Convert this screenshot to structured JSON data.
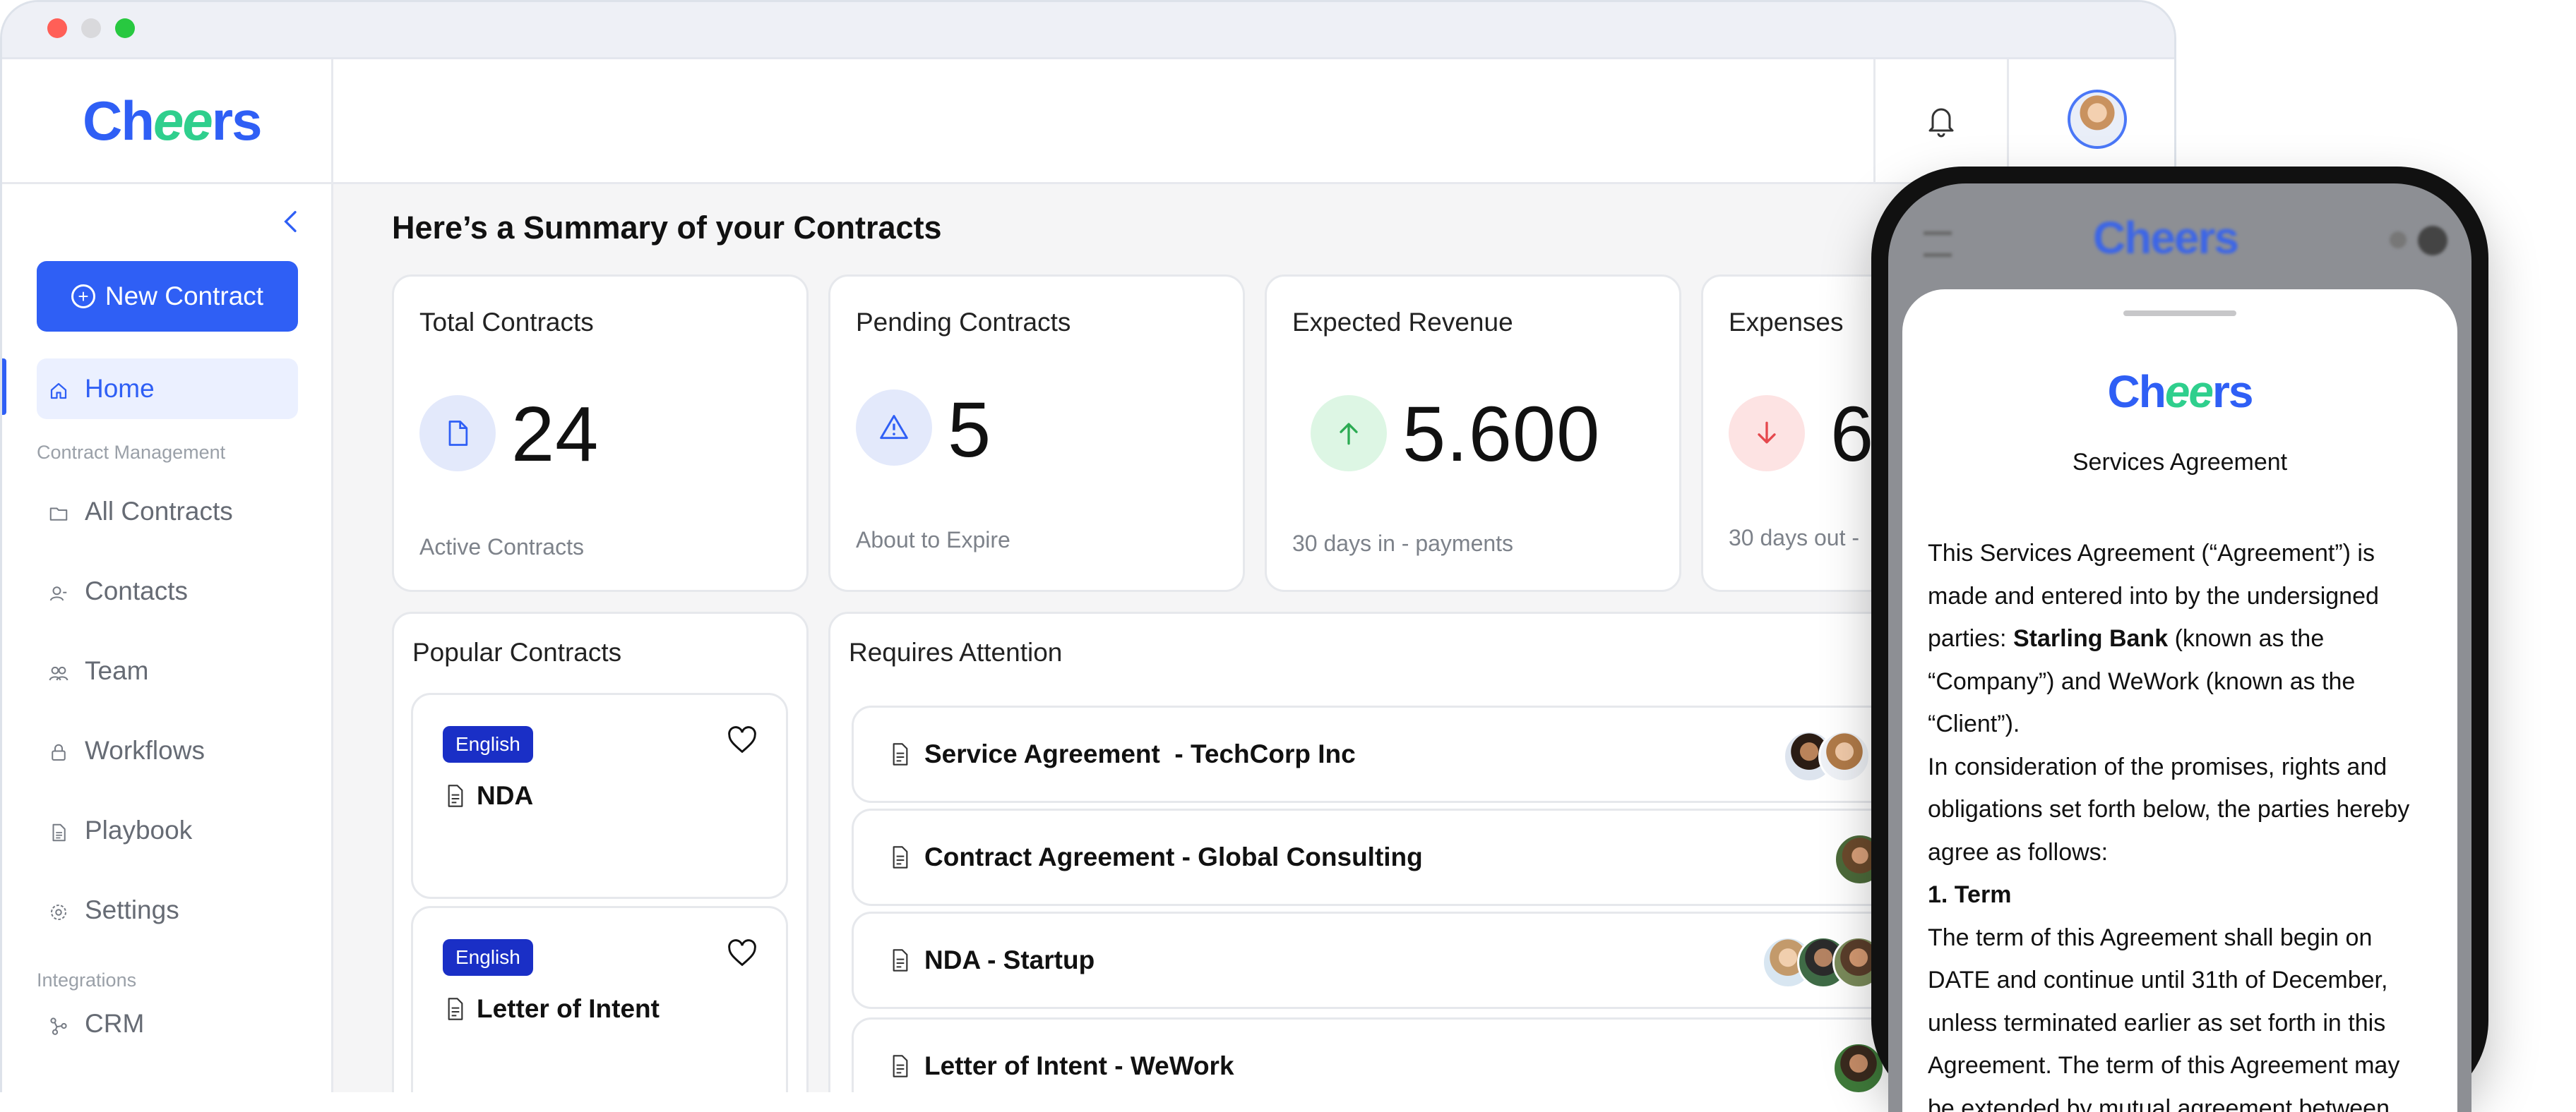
{
  "brand": {
    "logo_prefix": "Ch",
    "logo_mid": "ee",
    "logo_suffix": "rs",
    "primary": "#2f5ff5",
    "accent": "#2fcf8d"
  },
  "sidebar": {
    "new_contract": "New Contract",
    "home": "Home",
    "section_contract_management": "Contract Management",
    "items": [
      {
        "label": "All Contracts",
        "icon": "folder-icon"
      },
      {
        "label": "Contacts",
        "icon": "contacts-icon"
      },
      {
        "label": "Team",
        "icon": "team-icon"
      },
      {
        "label": "Workflows",
        "icon": "lock-icon"
      },
      {
        "label": "Playbook",
        "icon": "playbook-icon"
      },
      {
        "label": "Settings",
        "icon": "gear-icon"
      }
    ],
    "section_integrations": "Integrations",
    "crm": "CRM"
  },
  "main": {
    "title": "Here’s a Summary of your Contracts",
    "stats": [
      {
        "label": "Total Contracts",
        "value": "24",
        "sub": "Active Contracts",
        "icon": "document-icon"
      },
      {
        "label": "Pending Contracts",
        "value": "5",
        "sub": "About to Expire",
        "icon": "warning-icon"
      },
      {
        "label": "Expected Revenue",
        "value": "5.600",
        "sub": "30 days in - payments",
        "icon": "arrow-up-icon"
      },
      {
        "label": "Expenses",
        "value": "6",
        "sub": "30 days out -",
        "icon": "arrow-down-icon"
      }
    ],
    "popular": {
      "title": "Popular Contracts",
      "items": [
        {
          "badge": "English",
          "name": "NDA"
        },
        {
          "badge": "English",
          "name": "Letter of Intent"
        }
      ]
    },
    "attention": {
      "title": "Requires Attention",
      "items": [
        {
          "name": "Service Agreement  - TechCorp Inc"
        },
        {
          "name": "Contract Agreement - Global Consulting"
        },
        {
          "name": "NDA - Startup"
        },
        {
          "name": "Letter of Intent - WeWork"
        }
      ]
    }
  },
  "phone": {
    "doc_title": "Services Agreement",
    "p1_a": "This Services Agreement (“Agreement”) is made and entered into by the undersigned parties: ",
    "p1_bold": "Starling Bank",
    "p1_b": " (known as the “Company”) and WeWork (known as the “Client”).",
    "p2": "In consideration of the promises, rights and obligations set forth below, the parties hereby agree as follows:",
    "h1": "1. Term",
    "p3": "The term of this Agreement shall begin on DATE and continue until 31th of December, unless terminated earlier as set forth in this Agreement. The term of this Agreement may be extended by mutual agreement between"
  }
}
